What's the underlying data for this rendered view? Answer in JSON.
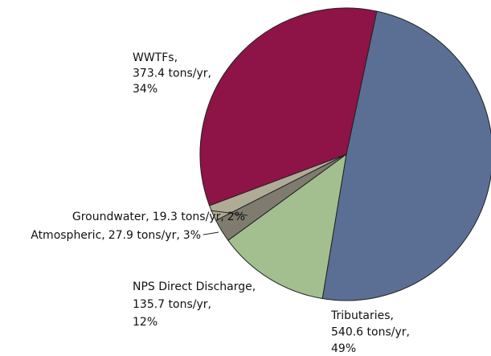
{
  "chart_data": {
    "type": "pie",
    "categories": [
      "Tributaries,",
      "NPS Direct Discharge,",
      "Atmospheric,",
      "Groundwater,",
      "WWTFs,"
    ],
    "values": [
      540.6,
      135.7,
      27.9,
      19.3,
      373.4
    ],
    "value_labels": [
      "540.6 tons/yr,",
      "135.7 tons/yr,",
      "27.9 tons/yr,",
      "19.3 tons/yr,",
      "373.4 tons/yr,"
    ],
    "percents": [
      49,
      12,
      3,
      2,
      34
    ],
    "percent_labels": [
      "49%",
      "12%",
      "3%",
      "2%",
      "34%"
    ],
    "colors": [
      "#5b6f94",
      "#a3bf8f",
      "#7f7b6e",
      "#b0ab97",
      "#8e1346"
    ]
  }
}
